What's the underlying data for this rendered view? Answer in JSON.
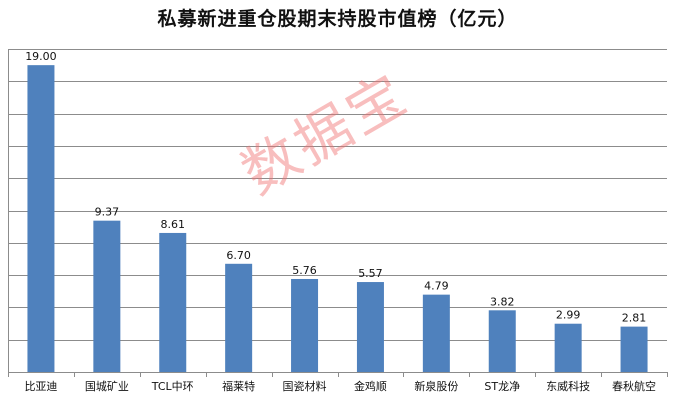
{
  "title": "私募新进重仓股期末持股市值榜（亿元）",
  "watermark": "数据宝",
  "colors": {
    "bar": "#4f81bd",
    "grid": "#8c8c8c",
    "watermark": "#f07070"
  },
  "chart_data": {
    "type": "bar",
    "title": "私募新进重仓股期末持股市值榜（亿元）",
    "categories": [
      "比亚迪",
      "国城矿业",
      "TCL中环",
      "福莱特",
      "国瓷材料",
      "金鸡顺",
      "新泉股份",
      "ST龙净",
      "东威科技",
      "春秋航空"
    ],
    "values": [
      19.0,
      9.37,
      8.61,
      6.7,
      5.76,
      5.57,
      4.79,
      3.82,
      2.99,
      2.81
    ],
    "value_labels": [
      "19.00",
      "9.37",
      "8.61",
      "6.70",
      "5.76",
      "5.57",
      "4.79",
      "3.82",
      "2.99",
      "2.81"
    ],
    "ylim": [
      0,
      20
    ],
    "y_gridline_step": 2,
    "grid": true,
    "y_tick_labels_shown": false,
    "legend": "none"
  }
}
